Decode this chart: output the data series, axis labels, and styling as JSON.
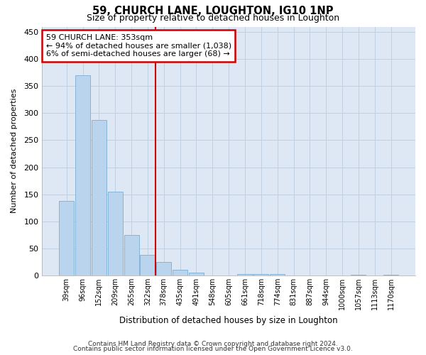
{
  "title1": "59, CHURCH LANE, LOUGHTON, IG10 1NP",
  "title2": "Size of property relative to detached houses in Loughton",
  "xlabel": "Distribution of detached houses by size in Loughton",
  "ylabel": "Number of detached properties",
  "bar_color": "#bad4ed",
  "bar_edge_color": "#7aaed4",
  "vline_color": "#cc0000",
  "vline_x": 5.5,
  "annotation_text": "59 CHURCH LANE: 353sqm\n← 94% of detached houses are smaller (1,038)\n6% of semi-detached houses are larger (68) →",
  "annotation_box_color": "#ffffff",
  "annotation_box_edge": "#cc0000",
  "grid_color": "#c0d0e0",
  "background_color": "#dde8f4",
  "categories": [
    "39sqm",
    "96sqm",
    "152sqm",
    "209sqm",
    "265sqm",
    "322sqm",
    "378sqm",
    "435sqm",
    "491sqm",
    "548sqm",
    "605sqm",
    "661sqm",
    "718sqm",
    "774sqm",
    "831sqm",
    "887sqm",
    "944sqm",
    "1000sqm",
    "1057sqm",
    "1113sqm",
    "1170sqm"
  ],
  "values": [
    138,
    370,
    287,
    155,
    75,
    38,
    25,
    10,
    5,
    0,
    0,
    3,
    2,
    2,
    0,
    0,
    0,
    0,
    1,
    0,
    1
  ],
  "ylim": [
    0,
    460
  ],
  "yticks": [
    0,
    50,
    100,
    150,
    200,
    250,
    300,
    350,
    400,
    450
  ],
  "footnote1": "Contains HM Land Registry data © Crown copyright and database right 2024.",
  "footnote2": "Contains public sector information licensed under the Open Government Licence v3.0."
}
